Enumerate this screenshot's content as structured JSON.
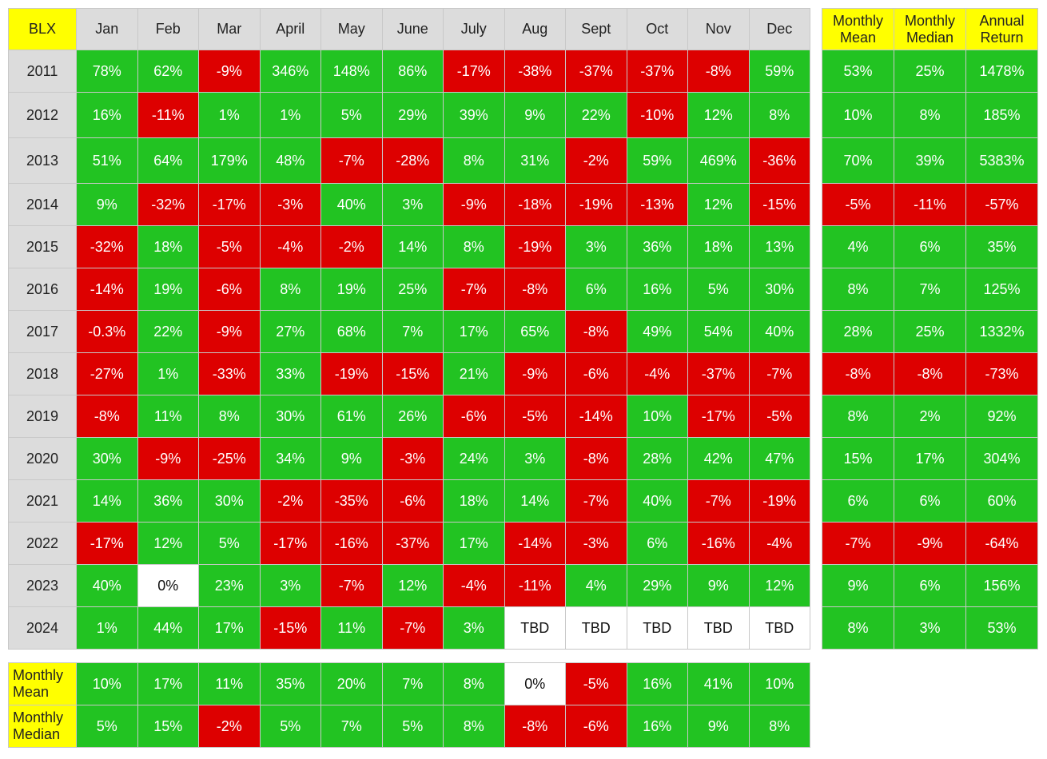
{
  "chart_data": {
    "type": "table",
    "title": "BLX",
    "months": [
      "Jan",
      "Feb",
      "Mar",
      "April",
      "May",
      "June",
      "July",
      "Aug",
      "Sept",
      "Oct",
      "Nov",
      "Dec"
    ],
    "summary_columns": [
      "Monthly Mean",
      "Monthly Median",
      "Annual Return"
    ],
    "rows": [
      {
        "year": "2011",
        "values": [
          "78%",
          "62%",
          "-9%",
          "346%",
          "148%",
          "86%",
          "-17%",
          "-38%",
          "-37%",
          "-37%",
          "-8%",
          "59%"
        ],
        "summary": [
          "53%",
          "25%",
          "1478%"
        ]
      },
      {
        "year": "2012",
        "values": [
          "16%",
          "-11%",
          "1%",
          "1%",
          "5%",
          "29%",
          "39%",
          "9%",
          "22%",
          "-10%",
          "12%",
          "8%"
        ],
        "summary": [
          "10%",
          "8%",
          "185%"
        ]
      },
      {
        "year": "2013",
        "values": [
          "51%",
          "64%",
          "179%",
          "48%",
          "-7%",
          "-28%",
          "8%",
          "31%",
          "-2%",
          "59%",
          "469%",
          "-36%"
        ],
        "summary": [
          "70%",
          "39%",
          "5383%"
        ]
      },
      {
        "year": "2014",
        "values": [
          "9%",
          "-32%",
          "-17%",
          "-3%",
          "40%",
          "3%",
          "-9%",
          "-18%",
          "-19%",
          "-13%",
          "12%",
          "-15%"
        ],
        "summary": [
          "-5%",
          "-11%",
          "-57%"
        ]
      },
      {
        "year": "2015",
        "values": [
          "-32%",
          "18%",
          "-5%",
          "-4%",
          "-2%",
          "14%",
          "8%",
          "-19%",
          "3%",
          "36%",
          "18%",
          "13%"
        ],
        "summary": [
          "4%",
          "6%",
          "35%"
        ]
      },
      {
        "year": "2016",
        "values": [
          "-14%",
          "19%",
          "-6%",
          "8%",
          "19%",
          "25%",
          "-7%",
          "-8%",
          "6%",
          "16%",
          "5%",
          "30%"
        ],
        "summary": [
          "8%",
          "7%",
          "125%"
        ]
      },
      {
        "year": "2017",
        "values": [
          "-0.3%",
          "22%",
          "-9%",
          "27%",
          "68%",
          "7%",
          "17%",
          "65%",
          "-8%",
          "49%",
          "54%",
          "40%"
        ],
        "summary": [
          "28%",
          "25%",
          "1332%"
        ]
      },
      {
        "year": "2018",
        "values": [
          "-27%",
          "1%",
          "-33%",
          "33%",
          "-19%",
          "-15%",
          "21%",
          "-9%",
          "-6%",
          "-4%",
          "-37%",
          "-7%"
        ],
        "summary": [
          "-8%",
          "-8%",
          "-73%"
        ]
      },
      {
        "year": "2019",
        "values": [
          "-8%",
          "11%",
          "8%",
          "30%",
          "61%",
          "26%",
          "-6%",
          "-5%",
          "-14%",
          "10%",
          "-17%",
          "-5%"
        ],
        "summary": [
          "8%",
          "2%",
          "92%"
        ]
      },
      {
        "year": "2020",
        "values": [
          "30%",
          "-9%",
          "-25%",
          "34%",
          "9%",
          "-3%",
          "24%",
          "3%",
          "-8%",
          "28%",
          "42%",
          "47%"
        ],
        "summary": [
          "15%",
          "17%",
          "304%"
        ]
      },
      {
        "year": "2021",
        "values": [
          "14%",
          "36%",
          "30%",
          "-2%",
          "-35%",
          "-6%",
          "18%",
          "14%",
          "-7%",
          "40%",
          "-7%",
          "-19%"
        ],
        "summary": [
          "6%",
          "6%",
          "60%"
        ]
      },
      {
        "year": "2022",
        "values": [
          "-17%",
          "12%",
          "5%",
          "-17%",
          "-16%",
          "-37%",
          "17%",
          "-14%",
          "-3%",
          "6%",
          "-16%",
          "-4%"
        ],
        "summary": [
          "-7%",
          "-9%",
          "-64%"
        ]
      },
      {
        "year": "2023",
        "values": [
          "40%",
          "0%",
          "23%",
          "3%",
          "-7%",
          "12%",
          "-4%",
          "-11%",
          "4%",
          "29%",
          "9%",
          "12%"
        ],
        "summary": [
          "9%",
          "6%",
          "156%"
        ]
      },
      {
        "year": "2024",
        "values": [
          "1%",
          "44%",
          "17%",
          "-15%",
          "11%",
          "-7%",
          "3%",
          "TBD",
          "TBD",
          "TBD",
          "TBD",
          "TBD"
        ],
        "summary": [
          "8%",
          "3%",
          "53%"
        ]
      }
    ],
    "footer_rows": [
      {
        "label": "Monthly Mean",
        "values": [
          "10%",
          "17%",
          "11%",
          "35%",
          "20%",
          "7%",
          "8%",
          "0%",
          "-5%",
          "16%",
          "41%",
          "10%"
        ]
      },
      {
        "label": "Monthly Median",
        "values": [
          "5%",
          "15%",
          "-2%",
          "5%",
          "7%",
          "5%",
          "8%",
          "-8%",
          "-6%",
          "16%",
          "9%",
          "8%"
        ]
      }
    ],
    "colors": {
      "positive": "#22c322",
      "negative": "#dd0000",
      "neutral": "#ffffff",
      "header_highlight": "#ffff00",
      "header": "#dcdcdc"
    }
  }
}
